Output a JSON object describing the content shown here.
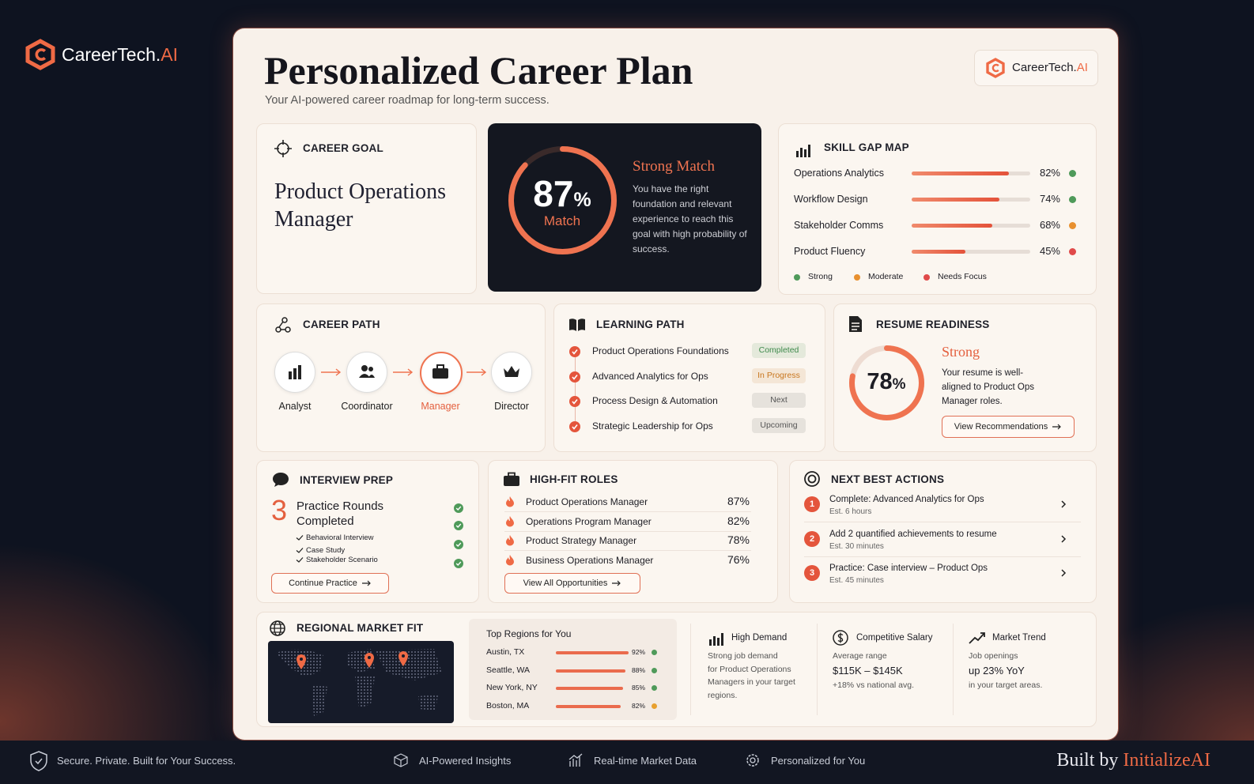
{
  "brand": {
    "name": "CareerTech.",
    "accent": "AI"
  },
  "header": {
    "title": "Personalized Career Plan",
    "subtitle": "Your AI-powered career roadmap for long-term success.",
    "badge": {
      "name": "CareerTech.",
      "accent": "AI"
    }
  },
  "career_goal": {
    "heading": "CAREER GOAL",
    "goal": "Product Operations Manager"
  },
  "match": {
    "value": 87,
    "unit": "%",
    "caption": "Match",
    "title": "Strong Match",
    "text": "You have the right foundation and relevant experience to reach this goal with high probability of success."
  },
  "skill_gap": {
    "heading": "SKILL GAP MAP",
    "skills": [
      {
        "name": "Operations Analytics",
        "value": 82,
        "label": "82%",
        "color": "#4f9a5a"
      },
      {
        "name": "Workflow Design",
        "value": 74,
        "label": "74%",
        "color": "#4f9a5a"
      },
      {
        "name": "Stakeholder Comms",
        "value": 68,
        "label": "68%",
        "color": "#e8902f"
      },
      {
        "name": "Product Fluency",
        "value": 45,
        "label": "45%",
        "color": "#e04a4a"
      }
    ],
    "legend": [
      {
        "label": "Strong",
        "color": "#4f9a5a"
      },
      {
        "label": "Moderate",
        "color": "#e8902f"
      },
      {
        "label": "Needs Focus",
        "color": "#e04a4a"
      }
    ]
  },
  "career_path": {
    "heading": "CAREER PATH",
    "steps": [
      {
        "label": "Analyst"
      },
      {
        "label": "Coordinator"
      },
      {
        "label": "Manager",
        "current": true
      },
      {
        "label": "Director"
      }
    ]
  },
  "learning_path": {
    "heading": "LEARNING PATH",
    "items": [
      {
        "name": "Product Operations Foundations",
        "status": "Completed",
        "status_color": "#3f8a4c"
      },
      {
        "name": "Advanced Analytics for Ops",
        "status": "In Progress",
        "status_color": "#c8761e"
      },
      {
        "name": "Process Design & Automation",
        "status": "Next",
        "status_color": "#555555"
      },
      {
        "name": "Strategic Leadership for Ops",
        "status": "Upcoming",
        "status_color": "#555555"
      }
    ]
  },
  "resume": {
    "heading": "RESUME READINESS",
    "value": 78,
    "unit": "%",
    "rating": "Strong",
    "text": "Your resume is well-aligned to Product Ops Manager roles.",
    "button": "View Recommendations"
  },
  "interview_prep": {
    "heading": "INTERVIEW PREP",
    "count": 3,
    "title": "Practice Rounds Completed",
    "items": [
      "Behavioral Interview",
      "Case Study",
      "Stakeholder Scenario"
    ],
    "button": "Continue Practice"
  },
  "high_fit_roles": {
    "heading": "HIGH-FIT ROLES",
    "roles": [
      {
        "name": "Product Operations Manager",
        "match": "87%"
      },
      {
        "name": "Operations Program Manager",
        "match": "82%"
      },
      {
        "name": "Product Strategy Manager",
        "match": "78%"
      },
      {
        "name": "Business Operations Manager",
        "match": "76%"
      }
    ],
    "button": "View All Opportunities"
  },
  "next_actions": {
    "heading": "NEXT BEST ACTIONS",
    "items": [
      {
        "number": 1,
        "title": "Complete: Advanced Analytics for Ops",
        "estimate": "Est. 6 hours"
      },
      {
        "number": 2,
        "title": "Add 2 quantified achievements to resume",
        "estimate": "Est. 30 minutes"
      },
      {
        "number": 3,
        "title": "Practice: Case interview – Product Ops",
        "estimate": "Est. 45 minutes"
      }
    ]
  },
  "regional_market": {
    "heading": "REGIONAL MARKET FIT",
    "regions_heading": "Top Regions for You",
    "regions": [
      {
        "name": "Austin, TX",
        "value": 92,
        "label": "92%",
        "color": "#4f9a5a"
      },
      {
        "name": "Seattle, WA",
        "value": 88,
        "label": "88%",
        "color": "#4f9a5a"
      },
      {
        "name": "New York, NY",
        "value": 85,
        "label": "85%",
        "color": "#4f9a5a"
      },
      {
        "name": "Boston, MA",
        "value": 82,
        "label": "82%",
        "color": "#e8a02f"
      }
    ],
    "stats": [
      {
        "title": "High Demand",
        "lines": [
          "Strong job demand",
          "for Product Operations",
          "Managers in your target",
          "regions."
        ]
      },
      {
        "title": "Competitive Salary",
        "lines": [
          "Average range",
          "$115K – $145K",
          "+18% vs national avg."
        ]
      },
      {
        "title": "Market Trend",
        "lines": [
          "Job openings",
          "up 23% YoY",
          "in your target areas."
        ]
      }
    ]
  },
  "footer": {
    "tagline": "Secure. Private. Built for Your Success.",
    "features": [
      "AI-Powered Insights",
      "Real-time Market Data",
      "Personalized for You"
    ],
    "built_by": "Built by",
    "maker": "InitializeAI"
  }
}
